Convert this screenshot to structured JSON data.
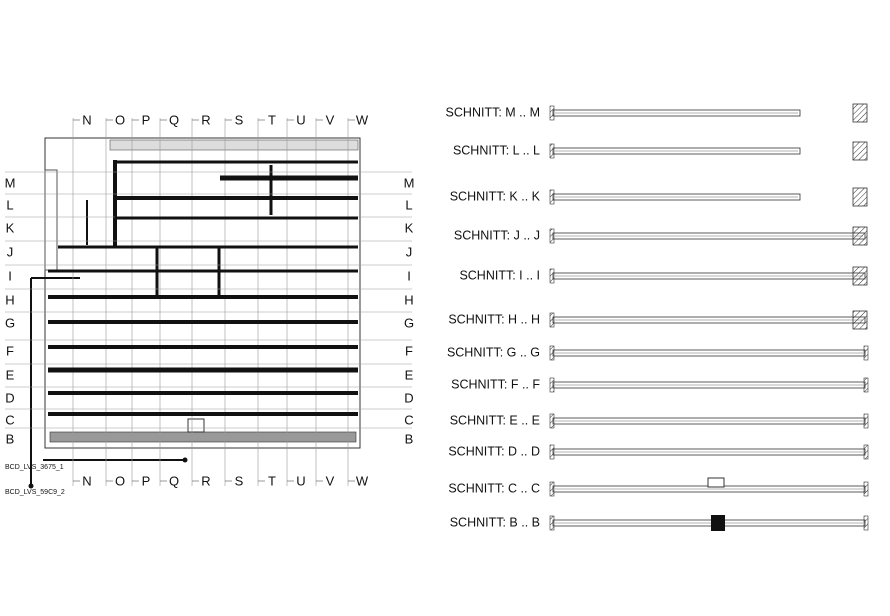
{
  "plan": {
    "column_labels": [
      "N",
      "O",
      "P",
      "Q",
      "R",
      "S",
      "T",
      "U",
      "V",
      "W"
    ],
    "row_labels": [
      "M",
      "L",
      "K",
      "J",
      "I",
      "H",
      "G",
      "F",
      "E",
      "D",
      "C",
      "B"
    ],
    "tags": [
      "BCD_LVS_3675_1",
      "BCD_LVS_59C9_2"
    ]
  },
  "sections": [
    "SCHNITT: M .. M",
    "SCHNITT: L .. L",
    "SCHNITT: K .. K",
    "SCHNITT: J .. J",
    "SCHNITT: I .. I",
    "SCHNITT: H .. H",
    "SCHNITT: G .. G",
    "SCHNITT: F .. F",
    "SCHNITT: E .. E",
    "SCHNITT: D .. D",
    "SCHNITT: C .. C",
    "SCHNITT: B .. B"
  ]
}
